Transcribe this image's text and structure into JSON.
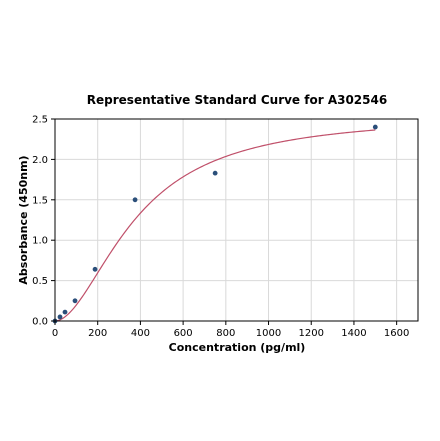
{
  "chart_data": {
    "type": "scatter",
    "title": "Representative Standard Curve for A302546",
    "xlabel": "Concentration (pg/ml)",
    "ylabel": "Absorbance (450nm)",
    "xlim": [
      0,
      1700
    ],
    "ylim": [
      0,
      2.5
    ],
    "xticks": [
      0,
      200,
      400,
      600,
      800,
      1000,
      1200,
      1400,
      1600
    ],
    "yticks": [
      0.0,
      0.5,
      1.0,
      1.5,
      2.0,
      2.5
    ],
    "grid": true,
    "legend": "none",
    "colors": {
      "curve": "#c0506a",
      "points": "#2b4f7a"
    },
    "points": [
      {
        "x": 0,
        "y": 0.0
      },
      {
        "x": 23.4,
        "y": 0.05
      },
      {
        "x": 46.9,
        "y": 0.11
      },
      {
        "x": 93.75,
        "y": 0.25
      },
      {
        "x": 187.5,
        "y": 0.64
      },
      {
        "x": 375,
        "y": 1.5
      },
      {
        "x": 750,
        "y": 1.83
      },
      {
        "x": 1500,
        "y": 2.4
      }
    ],
    "fit": {
      "model": "4PL",
      "a": 0.0,
      "b": 1.85,
      "c": 380,
      "d": 2.55,
      "x_range": [
        0,
        1500
      ]
    }
  }
}
